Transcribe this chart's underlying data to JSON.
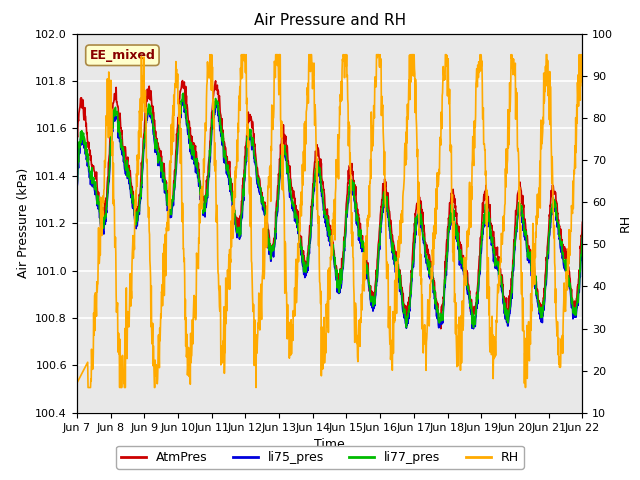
{
  "title": "Air Pressure and RH",
  "xlabel": "Time",
  "ylabel_left": "Air Pressure (kPa)",
  "ylabel_right": "RH",
  "ylim_left": [
    100.4,
    102.0
  ],
  "ylim_right": [
    10,
    100
  ],
  "yticks_left": [
    100.4,
    100.6,
    100.8,
    101.0,
    101.2,
    101.4,
    101.6,
    101.8,
    102.0
  ],
  "yticks_right": [
    10,
    20,
    30,
    40,
    50,
    60,
    70,
    80,
    90,
    100
  ],
  "xtick_labels": [
    "Jun 7",
    "Jun 8",
    "Jun 9",
    "Jun 10",
    "Jun 11",
    "Jun 12",
    "Jun 13",
    "Jun 14",
    "Jun 15",
    "Jun 16",
    "Jun 17",
    "Jun 18",
    "Jun 19",
    "Jun 20",
    "Jun 21",
    "Jun 22"
  ],
  "label_tag": "EE_mixed",
  "label_tag_facecolor": "#ffffcc",
  "label_tag_edgecolor": "#aa8844",
  "label_tag_textcolor": "#880000",
  "colors": {
    "AtmPres": "#cc0000",
    "li75_pres": "#0000dd",
    "li77_pres": "#00bb00",
    "RH": "#ffaa00"
  },
  "linewidths": {
    "AtmPres": 1.2,
    "li75_pres": 1.2,
    "li77_pres": 1.2,
    "RH": 1.2
  },
  "plot_bg_color": "#e8e8e8",
  "grid_color": "#ffffff",
  "title_fontsize": 11,
  "axis_label_fontsize": 9,
  "tick_fontsize": 8
}
